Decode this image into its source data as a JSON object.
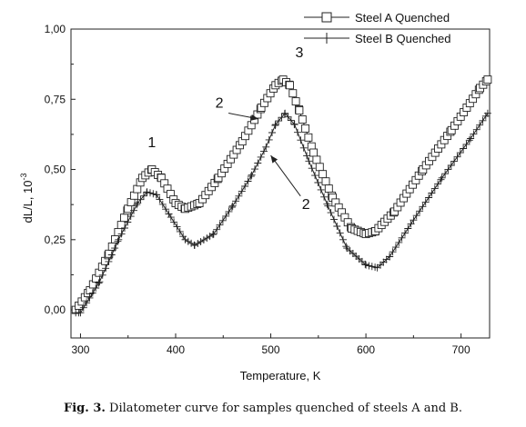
{
  "chart_data": {
    "type": "line",
    "xlabel": "Temperature, K",
    "ylabel": "dL/L, 10",
    "ylabel_exp": "-3",
    "xlim": [
      290,
      730
    ],
    "ylim": [
      -0.1,
      1.0
    ],
    "x_ticks": [
      300,
      400,
      500,
      600,
      700
    ],
    "x_tick_labels": [
      "300",
      "400",
      "500",
      "600",
      "700"
    ],
    "y_ticks": [
      0.0,
      0.25,
      0.5,
      0.75,
      1.0
    ],
    "y_tick_labels": [
      "0,00",
      "0,25",
      "0,50",
      "0,75",
      "1,00"
    ],
    "grid": false,
    "legend_position": "top-right",
    "series": [
      {
        "name": "Steel A Quenched",
        "marker": "open-square",
        "x": [
          295,
          310,
          330,
          350,
          365,
          375,
          385,
          400,
          410,
          425,
          445,
          470,
          490,
          505,
          513,
          520,
          530,
          545,
          565,
          585,
          600,
          610,
          630,
          660,
          690,
          720,
          728
        ],
        "y": [
          0.0,
          0.07,
          0.2,
          0.36,
          0.47,
          0.5,
          0.47,
          0.38,
          0.36,
          0.38,
          0.47,
          0.6,
          0.72,
          0.8,
          0.82,
          0.8,
          0.71,
          0.56,
          0.4,
          0.29,
          0.27,
          0.28,
          0.35,
          0.5,
          0.64,
          0.79,
          0.82
        ]
      },
      {
        "name": "Steel B Quenched",
        "marker": "plus",
        "x": [
          295,
          300,
          320,
          340,
          360,
          370,
          380,
          395,
          410,
          420,
          440,
          460,
          480,
          495,
          505,
          515,
          525,
          540,
          560,
          580,
          600,
          612,
          625,
          650,
          680,
          710,
          728
        ],
        "y": [
          -0.01,
          -0.01,
          0.1,
          0.25,
          0.38,
          0.42,
          0.41,
          0.33,
          0.25,
          0.23,
          0.27,
          0.37,
          0.48,
          0.58,
          0.66,
          0.7,
          0.66,
          0.53,
          0.37,
          0.22,
          0.16,
          0.15,
          0.19,
          0.32,
          0.47,
          0.61,
          0.7
        ]
      }
    ],
    "annotations": [
      {
        "text": "1",
        "x": 375,
        "y": 0.58
      },
      {
        "text": "2",
        "x": 446,
        "y": 0.72,
        "arrow_to": [
          487,
          0.68
        ]
      },
      {
        "text": "3",
        "x": 530,
        "y": 0.9
      },
      {
        "text": "2",
        "x": 537,
        "y": 0.36,
        "arrow_to": [
          500,
          0.55
        ]
      }
    ]
  },
  "caption": {
    "label": "Fig. 3.",
    "text": "Dilatometer curve for samples quenched of steels A and B."
  }
}
